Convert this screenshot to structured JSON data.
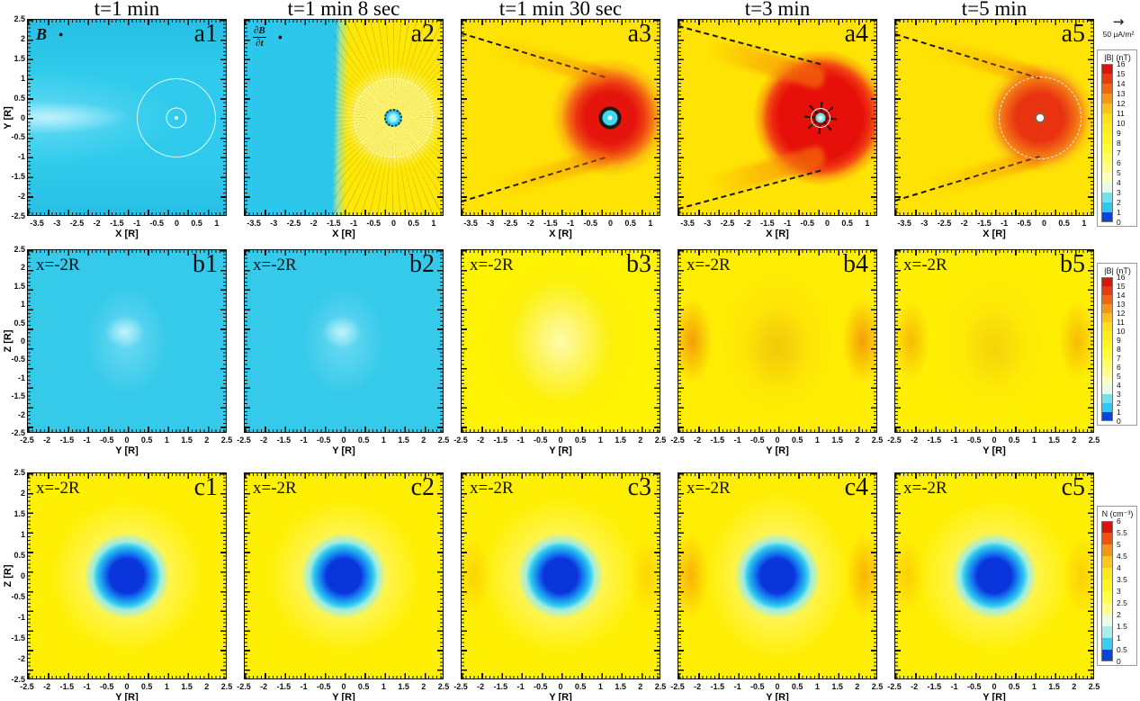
{
  "figure": {
    "vector_legend": {
      "arrow": "→",
      "label": "50 μA/m²"
    },
    "rows": [
      {
        "id": "a",
        "xlabel": "X [R]",
        "ylabel": "Y [R]",
        "x_ticks": [
          "-3.5",
          "-3",
          "-2.5",
          "-2",
          "-1.5",
          "-1",
          "-0.5",
          "0",
          "0.5",
          "1"
        ],
        "y_ticks": [
          "2.5",
          "2",
          "1.5",
          "1",
          "0.5",
          "0",
          "-0.5",
          "-1",
          "-1.5",
          "-2",
          "-2.5"
        ],
        "panels": [
          {
            "id": "a1",
            "kind": "a1",
            "title": "t=1 min",
            "label": "a1",
            "annotation": {
              "type": "text",
              "text": "B",
              "italic": true,
              "dot": "●"
            }
          },
          {
            "id": "a2",
            "kind": "a2",
            "title": "t=1 min 8 sec",
            "label": "a2",
            "annotation": {
              "type": "fraction",
              "top": "∂B",
              "bottom": "∂t",
              "dot": "●"
            }
          },
          {
            "id": "a3",
            "kind": "a3",
            "title": "t=1 min 30 sec",
            "label": "a3"
          },
          {
            "id": "a4",
            "kind": "a4",
            "title": "t=3 min",
            "label": "a4"
          },
          {
            "id": "a5",
            "kind": "a5",
            "title": "t=5 min",
            "label": "a5"
          }
        ],
        "colorbar": {
          "title": "|B| (nT)",
          "tick_labels": [
            "16",
            "15",
            "14",
            "13",
            "12",
            "11",
            "10",
            "9",
            "8",
            "7",
            "6",
            "5",
            "4",
            "3",
            "2",
            "1",
            "0"
          ],
          "colors": [
            "#da140d",
            "#e73a10",
            "#f06613",
            "#f79517",
            "#fcc01a",
            "#fede1d",
            "#ffec1e",
            "#fff61f",
            "#fffb37",
            "#ffff60",
            "#ffff8c",
            "#ffffc0",
            "#e6fae8",
            "#6fe2f2",
            "#2fc8f0",
            "#0b41dd"
          ]
        }
      },
      {
        "id": "b",
        "xlabel": "Y [R]",
        "ylabel": "Z [R]",
        "x_ticks": [
          "-2.5",
          "-2",
          "-1.5",
          "-1",
          "-0.5",
          "0",
          "0.5",
          "1",
          "1.5",
          "2",
          "2.5"
        ],
        "y_ticks": [
          "2.5",
          "2",
          "1.5",
          "1",
          "0.5",
          "0",
          "-0.5",
          "-1",
          "-1.5",
          "-2",
          "-2.5"
        ],
        "panels": [
          {
            "id": "b1",
            "kind": "b1",
            "label": "b1",
            "annotation": {
              "type": "text",
              "text": "x=-2R"
            }
          },
          {
            "id": "b2",
            "kind": "b1",
            "label": "b2",
            "annotation": {
              "type": "text",
              "text": "x=-2R"
            }
          },
          {
            "id": "b3",
            "kind": "b3",
            "label": "b3",
            "annotation": {
              "type": "text",
              "text": "x=-2R"
            }
          },
          {
            "id": "b4",
            "kind": "b4",
            "label": "b4",
            "annotation": {
              "type": "text",
              "text": "x=-2R"
            }
          },
          {
            "id": "b5",
            "kind": "b5",
            "label": "b5",
            "annotation": {
              "type": "text",
              "text": "x=-2R"
            }
          }
        ],
        "colorbar": {
          "title": "|B| (nT)",
          "tick_labels": [
            "16",
            "15",
            "14",
            "13",
            "12",
            "11",
            "10",
            "9",
            "8",
            "7",
            "6",
            "5",
            "4",
            "3",
            "2",
            "1",
            "0"
          ],
          "colors": [
            "#da140d",
            "#e73a10",
            "#f06613",
            "#f79517",
            "#fcc01a",
            "#fede1d",
            "#ffec1e",
            "#fff61f",
            "#fffb37",
            "#ffff60",
            "#ffff8c",
            "#ffffc0",
            "#e6fae8",
            "#6fe2f2",
            "#2fc8f0",
            "#0b41dd"
          ]
        }
      },
      {
        "id": "c",
        "xlabel": "Y [R]",
        "ylabel": "Z [R]",
        "x_ticks": [
          "-2.5",
          "-2",
          "-1.5",
          "-1",
          "-0.5",
          "0",
          "0.5",
          "1",
          "1.5",
          "2",
          "2.5"
        ],
        "y_ticks": [
          "2.5",
          "2",
          "1.5",
          "1",
          "0.5",
          "0",
          "-0.5",
          "-1",
          "-1.5",
          "-2",
          "-2.5"
        ],
        "panels": [
          {
            "id": "c1",
            "kind": "c1",
            "label": "c1",
            "annotation": {
              "type": "text",
              "text": "x=-2R"
            }
          },
          {
            "id": "c2",
            "kind": "c1",
            "label": "c2",
            "annotation": {
              "type": "text",
              "text": "x=-2R"
            }
          },
          {
            "id": "c3",
            "kind": "c3",
            "label": "c3",
            "annotation": {
              "type": "text",
              "text": "x=-2R"
            }
          },
          {
            "id": "c4",
            "kind": "c4",
            "label": "c4",
            "annotation": {
              "type": "text",
              "text": "x=-2R"
            }
          },
          {
            "id": "c5",
            "kind": "c5",
            "label": "c5",
            "annotation": {
              "type": "text",
              "text": "x=-2R"
            }
          }
        ],
        "colorbar": {
          "title": "N (cm⁻³)",
          "tick_labels": [
            "6",
            "5.5",
            "5",
            "4.5",
            "4",
            "3.5",
            "3",
            "2.5",
            "2",
            "1.5",
            "1",
            "0.5",
            "0"
          ],
          "colors": [
            "#da140d",
            "#ee5212",
            "#f79517",
            "#fcc81b",
            "#fee71e",
            "#fff61f",
            "#ffff45",
            "#ffff90",
            "#eafbe8",
            "#a8ecf0",
            "#38cdf1",
            "#0b41dd"
          ]
        }
      }
    ]
  },
  "chart_data": [
    {
      "type": "heatmap",
      "id": "row-a",
      "plane": "X–Y plane",
      "quantity": "|B| (nT)",
      "vector_overlay": "current density arrows, reference arrow = 50 μA/m²",
      "x": {
        "label": "X [R]",
        "range": [
          -3.75,
          1.25
        ],
        "ticks": [
          -3.5,
          -3,
          -2.5,
          -2,
          -1.5,
          -1,
          -0.5,
          0,
          0.5,
          1
        ]
      },
      "y": {
        "label": "Y [R]",
        "range": [
          -2.5,
          2.5
        ],
        "ticks": [
          2.5,
          2,
          1.5,
          1,
          0.5,
          0,
          -0.5,
          -1,
          -1.5,
          -2,
          -2.5
        ]
      },
      "color_scale": {
        "min": 0,
        "max": 16,
        "tick_step": 1,
        "mapping": "blue(0)→cyan(2-3)→white(4)→yellow(5-12)→orange(13-14)→red(15-16)"
      },
      "panels": [
        {
          "label": "a1",
          "time": "t=1 min",
          "features": "uniform cyan field ≈3 nT; thin white circles of radius 1 R and 0.25 R centered at origin; faint brighter wake along y=0 at left; B reference dot top-left"
        },
        {
          "label": "a2",
          "time": "t=1 min 8 sec",
          "features": "cyan ≈3 nT upstream of x≈-1.3R, yellow ≈10-11 nT around body; radial dotted ∂B/∂t vector field; dashed white circle r≈1R; cyan core at origin"
        },
        {
          "label": "a3",
          "time": "t=1 min 30 sec",
          "features": "yellow ≈10-11 nT with dashed Mach-cone lines from left edge; red compressed shell ≈15-16 nT, r≈1R at origin; dark current ring and cyan core"
        },
        {
          "label": "a4",
          "time": "t=3 min",
          "features": "largest red region ≈16 nT, r≈1.3R, orange tail lobes along dashed cone; starburst current pattern, white ring and bright core at origin"
        },
        {
          "label": "a5",
          "time": "t=5 min",
          "features": "red-orange shell ≈14-15 nT, r≈1R inside white dashed circle; dashed cone weaker; white dot core"
        }
      ]
    },
    {
      "type": "heatmap",
      "id": "row-b",
      "plane": "Y–Z plane at x=-2R",
      "quantity": "|B| (nT)",
      "x": {
        "label": "Y [R]",
        "range": [
          -2.5,
          2.5
        ],
        "ticks": [
          -2.5,
          -2,
          -1.5,
          -1,
          -0.5,
          0,
          0.5,
          1,
          1.5,
          2,
          2.5
        ]
      },
      "y": {
        "label": "Z [R]",
        "range": [
          -2.5,
          2.5
        ],
        "ticks": [
          2.5,
          2,
          1.5,
          1,
          0.5,
          0,
          -0.5,
          -1,
          -1.5,
          -2,
          -2.5
        ]
      },
      "color_scale": {
        "min": 0,
        "max": 16,
        "tick_step": 1
      },
      "panels": [
        {
          "label": "b1",
          "time": "t=1 min",
          "features": "uniform cyan ≈3 nT with faint brighter patch at center"
        },
        {
          "label": "b2",
          "time": "t=1 min 8 sec",
          "features": "same as b1: cyan ≈3 nT, faint central brightening"
        },
        {
          "label": "b3",
          "time": "t=1 min 30 sec",
          "features": "pale yellow ≈10 nT with faint lighter oval at center"
        },
        {
          "label": "b4",
          "time": "t=3 min",
          "features": "yellow ≈11 nT, orange arcs ≈13 nT on left and right flanks, darker oval ring and keyhole-shaped depression at center"
        },
        {
          "label": "b5",
          "time": "t=5 min",
          "features": "yellow ≈11 nT with weaker orange side arcs and faint central ring"
        }
      ]
    },
    {
      "type": "heatmap",
      "id": "row-c",
      "plane": "Y–Z plane at x=-2R",
      "quantity": "N (cm⁻³)",
      "x": {
        "label": "Y [R]",
        "range": [
          -2.5,
          2.5
        ],
        "ticks": [
          -2.5,
          -2,
          -1.5,
          -1,
          -0.5,
          0,
          0.5,
          1,
          1.5,
          2,
          2.5
        ]
      },
      "y": {
        "label": "Z [R]",
        "range": [
          -2.5,
          2.5
        ],
        "ticks": [
          2.5,
          2,
          1.5,
          1,
          0.5,
          0,
          -0.5,
          -1,
          -1.5,
          -2,
          -2.5
        ]
      },
      "color_scale": {
        "min": 0,
        "max": 6,
        "tick_step": 0.5,
        "mapping": "blue(0)→cyan(1)→white(2)→yellow(3-4.5)→orange(5)→red(6)"
      },
      "panels": [
        {
          "label": "c1",
          "time": "t=1 min",
          "features": "yellow ≈4.5 cm⁻³ background, pale halo, blue depletion core ≈0-0.5 cm⁻³ of r≈0.5R at center"
        },
        {
          "label": "c2",
          "time": "t=1 min 8 sec",
          "features": "same as c1"
        },
        {
          "label": "c3",
          "time": "t=1 min 30 sec",
          "features": "same as c1 with very faint orange side arcs"
        },
        {
          "label": "c4",
          "time": "t=3 min",
          "features": "blue core plus orange compression arcs ≈5 cm⁻³ on left and right flanks"
        },
        {
          "label": "c5",
          "time": "t=5 min",
          "features": "same as c1 with faint orange side arcs"
        }
      ]
    }
  ]
}
